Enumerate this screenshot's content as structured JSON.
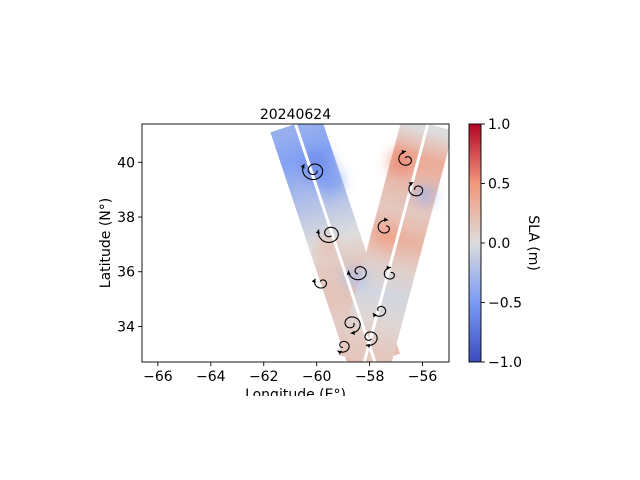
{
  "chart_data": {
    "type": "heatmap",
    "title": "20240624",
    "xlabel": "Longitude (E°)",
    "ylabel": "Latitude (N°)",
    "xlim": [
      -66.6,
      -55.0
    ],
    "ylim": [
      32.7,
      41.4
    ],
    "xticks": [
      -66,
      -64,
      -62,
      -60,
      -58,
      -56
    ],
    "xtick_labels": [
      "−66",
      "−64",
      "−62",
      "−60",
      "−58",
      "−56"
    ],
    "yticks": [
      34,
      36,
      38,
      40
    ],
    "ytick_labels": [
      "34",
      "36",
      "38",
      "40"
    ],
    "grid": false,
    "colorbar": {
      "label": "SLA (m)",
      "colormap": "coolwarm",
      "vmin": -1.0,
      "vmax": 1.0,
      "ticks": [
        1.0,
        0.5,
        0.0,
        -0.5,
        -1.0
      ],
      "tick_labels": [
        "1.0",
        "0.5",
        "0.0",
        "−0.5",
        "−1.0"
      ]
    },
    "swaths": [
      {
        "name": "",
        "start": [
          -60.8,
          41.4
        ],
        "end": [
          -57.8,
          32.7
        ],
        "width_deg": 2.0,
        "samples": [
          {
            "lat": 41.2,
            "sla": -0.35
          },
          {
            "lat": 40.2,
            "sla": -0.45
          },
          {
            "lat": 39.2,
            "sla": -0.3
          },
          {
            "lat": 38.2,
            "sla": -0.15
          },
          {
            "lat": 37.2,
            "sla": 0.0
          },
          {
            "lat": 36.2,
            "sla": 0.15
          },
          {
            "lat": 35.2,
            "sla": 0.18
          },
          {
            "lat": 34.2,
            "sla": 0.12
          },
          {
            "lat": 33.2,
            "sla": 0.22
          }
        ]
      },
      {
        "name": "",
        "start": [
          -55.8,
          41.4
        ],
        "end": [
          -58.2,
          32.7
        ],
        "width_deg": 2.0,
        "samples": [
          {
            "lat": 41.2,
            "sla": 0.0
          },
          {
            "lat": 40.2,
            "sla": 0.35
          },
          {
            "lat": 39.2,
            "sla": 0.25
          },
          {
            "lat": 38.2,
            "sla": 0.15
          },
          {
            "lat": 37.2,
            "sla": 0.3
          },
          {
            "lat": 36.2,
            "sla": 0.1
          },
          {
            "lat": 35.2,
            "sla": -0.05
          },
          {
            "lat": 34.2,
            "sla": 0.05
          },
          {
            "lat": 33.2,
            "sla": 0.15
          }
        ]
      }
    ],
    "anomalies": [
      {
        "lon": -60.0,
        "lat": 39.9,
        "sla": -0.6,
        "r_deg": 0.55
      },
      {
        "lon": -59.5,
        "lat": 39.3,
        "sla": -0.5,
        "r_deg": 0.45
      },
      {
        "lon": -58.6,
        "lat": 35.8,
        "sla": -0.25,
        "r_deg": 0.4
      },
      {
        "lon": -55.9,
        "lat": 38.8,
        "sla": -0.35,
        "r_deg": 0.35
      },
      {
        "lon": -56.8,
        "lat": 40.0,
        "sla": 0.55,
        "r_deg": 0.45
      },
      {
        "lon": -57.3,
        "lat": 37.3,
        "sla": 0.45,
        "r_deg": 0.4
      },
      {
        "lon": -59.6,
        "lat": 36.9,
        "sla": 0.25,
        "r_deg": 0.4
      }
    ],
    "streamlines": [
      {
        "kind": "eddy",
        "lon": -60.1,
        "lat": 39.7,
        "r_deg": 0.45,
        "turns": 1.6
      },
      {
        "kind": "eddy",
        "lon": -59.5,
        "lat": 37.4,
        "r_deg": 0.45,
        "turns": 1.4
      },
      {
        "kind": "eddy",
        "lon": -58.4,
        "lat": 36.0,
        "r_deg": 0.4,
        "turns": 1.2
      },
      {
        "kind": "eddy",
        "lon": -56.2,
        "lat": 39.0,
        "r_deg": 0.35,
        "turns": 1.2
      },
      {
        "kind": "eddy",
        "lon": -56.6,
        "lat": 40.1,
        "r_deg": 0.35,
        "turns": 1.1
      },
      {
        "kind": "eddy",
        "lon": -57.4,
        "lat": 37.6,
        "r_deg": 0.35,
        "turns": 1.0
      },
      {
        "kind": "eddy",
        "lon": -58.7,
        "lat": 34.1,
        "r_deg": 0.4,
        "turns": 1.3
      },
      {
        "kind": "eddy",
        "lon": -58.0,
        "lat": 33.6,
        "r_deg": 0.35,
        "turns": 1.2
      },
      {
        "kind": "eddy",
        "lon": -59.0,
        "lat": 33.3,
        "r_deg": 0.3,
        "turns": 1.1
      },
      {
        "kind": "eddy",
        "lon": -57.6,
        "lat": 34.6,
        "r_deg": 0.3,
        "turns": 1.0
      },
      {
        "kind": "eddy",
        "lon": -59.8,
        "lat": 35.6,
        "r_deg": 0.3,
        "turns": 1.0
      },
      {
        "kind": "eddy",
        "lon": -57.2,
        "lat": 35.9,
        "r_deg": 0.3,
        "turns": 1.0
      }
    ]
  }
}
